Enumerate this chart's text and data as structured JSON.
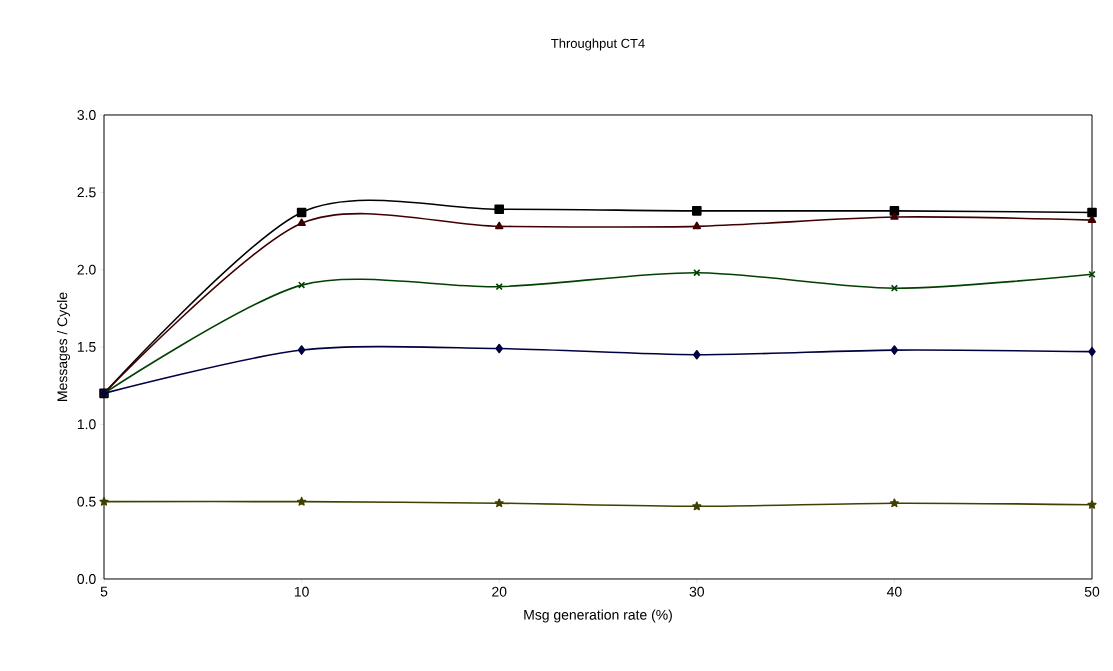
{
  "chart_data": {
    "type": "line",
    "title": "Throughput CT4",
    "xlabel": "Msg generation rate (%)",
    "ylabel": "Messages / Cycle",
    "categories": [
      "5",
      "10",
      "20",
      "30",
      "40",
      "50"
    ],
    "ylim": [
      0,
      3.0
    ],
    "yticks": [
      {
        "value": 0,
        "label": "0.0"
      },
      {
        "value": 0.5,
        "label": "0.5"
      },
      {
        "value": 1.0,
        "label": "1.0"
      },
      {
        "value": 1.5,
        "label": "1.5"
      },
      {
        "value": 2.0,
        "label": "2.0"
      },
      {
        "value": 2.5,
        "label": "2.5"
      },
      {
        "value": 3.0,
        "label": "3.0"
      }
    ],
    "grid": false,
    "series": [
      {
        "color": "#000000",
        "marker": "square",
        "values": [
          1.2,
          2.37,
          2.39,
          2.38,
          2.38,
          2.37
        ]
      },
      {
        "color": "#400000",
        "marker": "triangle",
        "values": [
          1.2,
          2.3,
          2.28,
          2.28,
          2.34,
          2.32
        ]
      },
      {
        "color": "#004000",
        "marker": "cross",
        "values": [
          1.2,
          1.9,
          1.89,
          1.98,
          1.88,
          1.97
        ]
      },
      {
        "color": "#000040",
        "marker": "diamond",
        "values": [
          1.2,
          1.48,
          1.49,
          1.45,
          1.48,
          1.47
        ]
      },
      {
        "color": "#404000",
        "marker": "star",
        "values": [
          0.5,
          0.5,
          0.49,
          0.47,
          0.49,
          0.48
        ]
      }
    ]
  }
}
